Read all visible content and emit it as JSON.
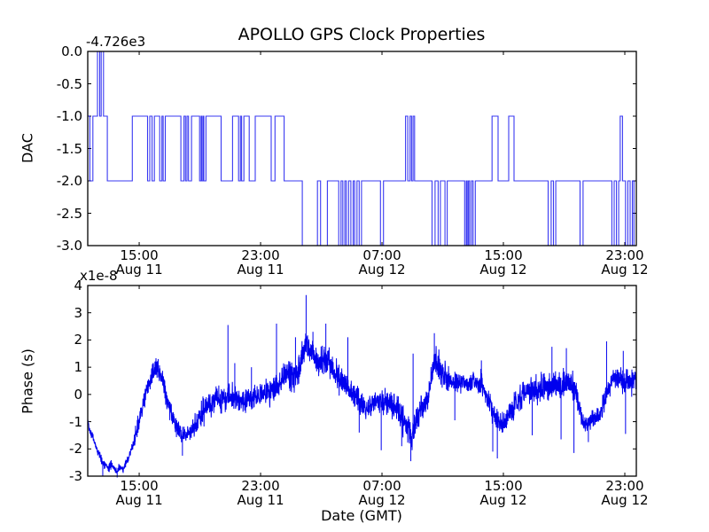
{
  "figure": {
    "title": "APOLLO GPS Clock Properties",
    "xlabel": "Date (GMT)",
    "background": "#ffffff",
    "line_color": "#0000ee",
    "axis_color": "#000000",
    "tick_direction": "in"
  },
  "chart_data": [
    {
      "type": "line",
      "name": "dac-subplot",
      "line_style": "step",
      "ylabel": "DAC",
      "y_offset_label": "-4.726e3",
      "ylim": [
        -3.0,
        0.0
      ],
      "ytick_values": [
        0.0,
        -0.5,
        -1.0,
        -1.5,
        -2.0,
        -2.5,
        -3.0
      ],
      "ytick_labels": [
        "0.0",
        "-0.5",
        "-1.0",
        "-1.5",
        "-2.0",
        "-2.5",
        "-3.0"
      ],
      "xlim_hours": [
        11.61,
        47.76
      ],
      "xtick_values": [
        15,
        23,
        31,
        39,
        47
      ],
      "xtick_labels": [
        [
          "15:00",
          "Aug 11"
        ],
        [
          "23:00",
          "Aug 11"
        ],
        [
          "07:00",
          "Aug 12"
        ],
        [
          "15:00",
          "Aug 12"
        ],
        [
          "23:00",
          "Aug 12"
        ]
      ],
      "steps": [
        [
          11.61,
          -1
        ],
        [
          11.75,
          -2
        ],
        [
          11.95,
          -1
        ],
        [
          12.25,
          0
        ],
        [
          12.4,
          -1
        ],
        [
          12.5,
          0
        ],
        [
          12.65,
          -1
        ],
        [
          12.9,
          -2
        ],
        [
          14.55,
          -1
        ],
        [
          15.55,
          -2
        ],
        [
          15.7,
          -1
        ],
        [
          15.85,
          -2
        ],
        [
          16.0,
          -1
        ],
        [
          16.35,
          -2
        ],
        [
          16.5,
          -1
        ],
        [
          16.58,
          -2
        ],
        [
          16.72,
          -1
        ],
        [
          17.75,
          -2
        ],
        [
          17.95,
          -1
        ],
        [
          18.05,
          -2
        ],
        [
          18.15,
          -1
        ],
        [
          18.25,
          -2
        ],
        [
          18.45,
          -1
        ],
        [
          18.98,
          -2
        ],
        [
          19.08,
          -1
        ],
        [
          19.12,
          -2
        ],
        [
          19.2,
          -1
        ],
        [
          19.26,
          -2
        ],
        [
          19.4,
          -1
        ],
        [
          20.4,
          -2
        ],
        [
          21.15,
          -1
        ],
        [
          21.55,
          -2
        ],
        [
          21.67,
          -1
        ],
        [
          21.75,
          -2
        ],
        [
          21.9,
          -1
        ],
        [
          22.25,
          -2
        ],
        [
          22.65,
          -1
        ],
        [
          23.7,
          -2
        ],
        [
          23.95,
          -1
        ],
        [
          24.55,
          -2
        ],
        [
          25.75,
          -3
        ],
        [
          26.75,
          -2
        ],
        [
          26.95,
          -3
        ],
        [
          27.4,
          -2
        ],
        [
          28.15,
          -3
        ],
        [
          28.3,
          -2
        ],
        [
          28.42,
          -3
        ],
        [
          28.55,
          -2
        ],
        [
          28.65,
          -3
        ],
        [
          28.8,
          -2
        ],
        [
          28.95,
          -3
        ],
        [
          29.1,
          -2
        ],
        [
          29.2,
          -3
        ],
        [
          29.35,
          -2
        ],
        [
          29.5,
          -3
        ],
        [
          29.65,
          -2
        ],
        [
          30.9,
          -3
        ],
        [
          31.1,
          -2
        ],
        [
          32.55,
          -1
        ],
        [
          32.7,
          -2
        ],
        [
          32.85,
          -1
        ],
        [
          32.95,
          -2
        ],
        [
          33.05,
          -1
        ],
        [
          33.15,
          -2
        ],
        [
          34.3,
          -3
        ],
        [
          34.5,
          -2
        ],
        [
          34.7,
          -3
        ],
        [
          34.85,
          -2
        ],
        [
          35.15,
          -3
        ],
        [
          35.3,
          -2
        ],
        [
          36.45,
          -3
        ],
        [
          36.55,
          -2
        ],
        [
          36.62,
          -3
        ],
        [
          36.7,
          -2
        ],
        [
          36.78,
          -3
        ],
        [
          36.9,
          -2
        ],
        [
          37.0,
          -3
        ],
        [
          37.15,
          -2
        ],
        [
          38.25,
          -1
        ],
        [
          38.65,
          -2
        ],
        [
          39.35,
          -1
        ],
        [
          39.7,
          -2
        ],
        [
          41.95,
          -3
        ],
        [
          42.15,
          -2
        ],
        [
          42.3,
          -3
        ],
        [
          42.45,
          -2
        ],
        [
          44.05,
          -3
        ],
        [
          44.25,
          -2
        ],
        [
          46.15,
          -3
        ],
        [
          46.3,
          -2
        ],
        [
          46.45,
          -3
        ],
        [
          46.6,
          -2
        ],
        [
          46.7,
          -1
        ],
        [
          46.85,
          -2
        ],
        [
          47.05,
          -3
        ],
        [
          47.2,
          -2
        ],
        [
          47.35,
          -3
        ],
        [
          47.5,
          -2
        ],
        [
          47.6,
          -3
        ],
        [
          47.76,
          -3
        ]
      ]
    },
    {
      "type": "line",
      "name": "phase-subplot",
      "line_style": "noisy",
      "ylabel": "Phase (s)",
      "y_scale_label": "x1e-8",
      "ylim": [
        -3,
        4
      ],
      "ytick_values": [
        4,
        3,
        2,
        1,
        0,
        -1,
        -2,
        -3
      ],
      "ytick_labels": [
        "4",
        "3",
        "2",
        "1",
        "0",
        "-1",
        "-2",
        "-3"
      ],
      "xlim_hours": [
        11.61,
        47.76
      ],
      "xtick_values": [
        15,
        23,
        31,
        39,
        47
      ],
      "xtick_labels": [
        [
          "15:00",
          "Aug 11"
        ],
        [
          "23:00",
          "Aug 11"
        ],
        [
          "07:00",
          "Aug 12"
        ],
        [
          "15:00",
          "Aug 12"
        ],
        [
          "23:00",
          "Aug 12"
        ]
      ],
      "units_note": "phase values in 1e-8 s",
      "anchors": [
        [
          11.61,
          -0.95
        ],
        [
          11.75,
          -1.3
        ],
        [
          11.95,
          -1.6
        ],
        [
          12.15,
          -1.9
        ],
        [
          12.35,
          -2.2
        ],
        [
          12.55,
          -2.45
        ],
        [
          12.75,
          -2.6
        ],
        [
          12.95,
          -2.75
        ],
        [
          13.15,
          -2.55
        ],
        [
          13.35,
          -2.7
        ],
        [
          13.55,
          -2.85
        ],
        [
          13.75,
          -2.7
        ],
        [
          13.95,
          -2.75
        ],
        [
          14.15,
          -2.5
        ],
        [
          14.35,
          -2.25
        ],
        [
          14.55,
          -1.9
        ],
        [
          14.75,
          -1.55
        ],
        [
          14.95,
          -1.1
        ],
        [
          15.15,
          -0.65
        ],
        [
          15.35,
          -0.2
        ],
        [
          15.55,
          0.25
        ],
        [
          15.75,
          0.55
        ],
        [
          15.95,
          0.8
        ],
        [
          16.15,
          1.0
        ],
        [
          16.35,
          0.8
        ],
        [
          16.55,
          0.5
        ],
        [
          16.75,
          0.05
        ],
        [
          16.95,
          -0.4
        ],
        [
          17.15,
          -0.75
        ],
        [
          17.35,
          -1.0
        ],
        [
          17.55,
          -1.25
        ],
        [
          17.75,
          -1.45
        ],
        [
          17.95,
          -1.5
        ],
        [
          18.15,
          -1.4
        ],
        [
          18.35,
          -1.45
        ],
        [
          18.55,
          -1.25
        ],
        [
          18.75,
          -1.05
        ],
        [
          18.95,
          -0.85
        ],
        [
          19.15,
          -0.65
        ],
        [
          19.35,
          -0.5
        ],
        [
          19.55,
          -0.4
        ],
        [
          19.75,
          -0.3
        ],
        [
          19.95,
          -0.25
        ],
        [
          20.15,
          -0.2
        ],
        [
          20.35,
          -0.25
        ],
        [
          20.55,
          -0.15
        ],
        [
          20.75,
          -0.1
        ],
        [
          20.95,
          0.0
        ],
        [
          21.15,
          -0.1
        ],
        [
          21.35,
          -0.2
        ],
        [
          21.55,
          -0.15
        ],
        [
          21.75,
          -0.2
        ],
        [
          21.95,
          -0.25
        ],
        [
          22.15,
          -0.15
        ],
        [
          22.35,
          -0.2
        ],
        [
          22.55,
          -0.1
        ],
        [
          22.75,
          -0.15
        ],
        [
          22.95,
          -0.05
        ],
        [
          23.15,
          0.0
        ],
        [
          23.35,
          0.05
        ],
        [
          23.55,
          0.1
        ],
        [
          23.75,
          0.2
        ],
        [
          23.95,
          0.15
        ],
        [
          24.15,
          0.3
        ],
        [
          24.35,
          0.5
        ],
        [
          24.55,
          0.7
        ],
        [
          24.75,
          0.8
        ],
        [
          24.95,
          0.7
        ],
        [
          25.15,
          0.6
        ],
        [
          25.35,
          0.8
        ],
        [
          25.55,
          1.0
        ],
        [
          25.75,
          1.3
        ],
        [
          25.9,
          1.6
        ],
        [
          26.0,
          1.9
        ],
        [
          26.15,
          1.7
        ],
        [
          26.35,
          1.5
        ],
        [
          26.55,
          1.4
        ],
        [
          26.75,
          1.3
        ],
        [
          26.95,
          1.2
        ],
        [
          27.15,
          1.25
        ],
        [
          27.35,
          1.3
        ],
        [
          27.55,
          1.1
        ],
        [
          27.75,
          0.9
        ],
        [
          27.95,
          0.7
        ],
        [
          28.15,
          0.6
        ],
        [
          28.35,
          0.5
        ],
        [
          28.55,
          0.35
        ],
        [
          28.75,
          0.25
        ],
        [
          28.95,
          0.1
        ],
        [
          29.15,
          0.0
        ],
        [
          29.35,
          -0.15
        ],
        [
          29.55,
          -0.3
        ],
        [
          29.75,
          -0.4
        ],
        [
          29.95,
          -0.5
        ],
        [
          30.15,
          -0.45
        ],
        [
          30.35,
          -0.35
        ],
        [
          30.55,
          -0.25
        ],
        [
          30.75,
          -0.3
        ],
        [
          30.95,
          -0.4
        ],
        [
          31.15,
          -0.3
        ],
        [
          31.35,
          -0.25
        ],
        [
          31.55,
          -0.3
        ],
        [
          31.75,
          -0.4
        ],
        [
          31.95,
          -0.55
        ],
        [
          32.15,
          -0.7
        ],
        [
          32.35,
          -0.9
        ],
        [
          32.55,
          -1.1
        ],
        [
          32.75,
          -1.3
        ],
        [
          32.95,
          -1.45
        ],
        [
          33.15,
          -1.2
        ],
        [
          33.35,
          -0.9
        ],
        [
          33.55,
          -0.6
        ],
        [
          33.75,
          -0.4
        ],
        [
          33.95,
          -0.2
        ],
        [
          34.15,
          0.3
        ],
        [
          34.35,
          0.9
        ],
        [
          34.5,
          1.3
        ],
        [
          34.7,
          1.1
        ],
        [
          34.9,
          0.9
        ],
        [
          35.1,
          0.75
        ],
        [
          35.3,
          0.6
        ],
        [
          35.5,
          0.5
        ],
        [
          35.7,
          0.45
        ],
        [
          35.9,
          0.4
        ],
        [
          36.1,
          0.45
        ],
        [
          36.3,
          0.5
        ],
        [
          36.5,
          0.45
        ],
        [
          36.7,
          0.4
        ],
        [
          36.9,
          0.45
        ],
        [
          37.1,
          0.4
        ],
        [
          37.3,
          0.35
        ],
        [
          37.5,
          0.4
        ],
        [
          37.7,
          0.2
        ],
        [
          37.9,
          0.0
        ],
        [
          38.1,
          -0.3
        ],
        [
          38.3,
          -0.6
        ],
        [
          38.5,
          -0.8
        ],
        [
          38.7,
          -1.0
        ],
        [
          38.9,
          -1.05
        ],
        [
          39.1,
          -0.95
        ],
        [
          39.3,
          -0.8
        ],
        [
          39.5,
          -0.6
        ],
        [
          39.7,
          -0.4
        ],
        [
          39.9,
          -0.25
        ],
        [
          40.1,
          -0.1
        ],
        [
          40.3,
          0.0
        ],
        [
          40.5,
          0.1
        ],
        [
          40.7,
          0.15
        ],
        [
          40.9,
          0.2
        ],
        [
          41.1,
          0.15
        ],
        [
          41.3,
          0.2
        ],
        [
          41.5,
          0.25
        ],
        [
          41.7,
          0.3
        ],
        [
          41.9,
          0.35
        ],
        [
          42.1,
          0.3
        ],
        [
          42.3,
          0.4
        ],
        [
          42.5,
          0.35
        ],
        [
          42.7,
          0.3
        ],
        [
          42.9,
          0.4
        ],
        [
          43.1,
          0.45
        ],
        [
          43.3,
          0.4
        ],
        [
          43.5,
          0.3
        ],
        [
          43.7,
          0.1
        ],
        [
          43.9,
          -0.3
        ],
        [
          44.1,
          -0.7
        ],
        [
          44.3,
          -0.95
        ],
        [
          44.5,
          -1.05
        ],
        [
          44.7,
          -1.0
        ],
        [
          44.9,
          -0.9
        ],
        [
          45.1,
          -0.85
        ],
        [
          45.3,
          -0.7
        ],
        [
          45.5,
          -0.5
        ],
        [
          45.7,
          -0.2
        ],
        [
          45.9,
          0.2
        ],
        [
          46.1,
          0.5
        ],
        [
          46.3,
          0.65
        ],
        [
          46.5,
          0.6
        ],
        [
          46.7,
          0.55
        ],
        [
          46.9,
          0.45
        ],
        [
          47.1,
          0.4
        ],
        [
          47.3,
          0.5
        ],
        [
          47.5,
          0.45
        ],
        [
          47.76,
          0.55
        ]
      ],
      "noise": {
        "default": 0.22,
        "regions": [
          [
            11.61,
            14.6,
            0.12
          ],
          [
            14.6,
            19.0,
            0.28
          ],
          [
            19.0,
            23.5,
            0.36
          ],
          [
            23.5,
            28.5,
            0.42
          ],
          [
            28.5,
            31.5,
            0.33
          ],
          [
            31.5,
            35.5,
            0.42
          ],
          [
            35.5,
            37.5,
            0.26
          ],
          [
            37.5,
            40.0,
            0.33
          ],
          [
            40.0,
            44.0,
            0.4
          ],
          [
            44.0,
            45.5,
            0.28
          ],
          [
            45.5,
            47.76,
            0.32
          ]
        ]
      },
      "spikes": [
        [
          12.6,
          -3.0
        ],
        [
          13.55,
          -3.05
        ],
        [
          16.25,
          1.3
        ],
        [
          17.85,
          -2.25
        ],
        [
          20.85,
          2.55
        ],
        [
          21.3,
          1.15
        ],
        [
          22.4,
          1.0
        ],
        [
          24.05,
          2.6
        ],
        [
          25.3,
          2.1
        ],
        [
          26.0,
          3.65
        ],
        [
          26.45,
          2.3
        ],
        [
          27.3,
          2.6
        ],
        [
          28.75,
          2.1
        ],
        [
          29.5,
          -1.4
        ],
        [
          30.95,
          -2.05
        ],
        [
          32.3,
          -1.9
        ],
        [
          32.9,
          -2.45
        ],
        [
          33.05,
          1.5
        ],
        [
          34.45,
          2.25
        ],
        [
          35.8,
          -0.95
        ],
        [
          37.55,
          1.25
        ],
        [
          38.3,
          -2.1
        ],
        [
          38.6,
          -2.35
        ],
        [
          40.9,
          -1.5
        ],
        [
          42.2,
          1.75
        ],
        [
          42.8,
          -1.65
        ],
        [
          43.15,
          1.7
        ],
        [
          43.65,
          -2.15
        ],
        [
          44.6,
          -1.75
        ],
        [
          45.8,
          1.95
        ],
        [
          46.9,
          1.6
        ],
        [
          47.05,
          -1.45
        ]
      ]
    }
  ]
}
